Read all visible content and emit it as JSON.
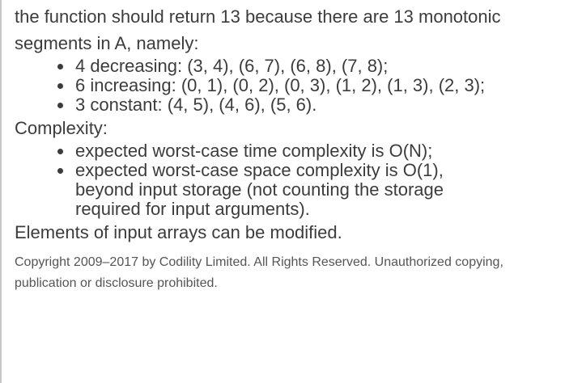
{
  "intro": "the function should return 13 because there are 13 monotonic segments in A, namely:",
  "segments": [
    "4 decreasing: (3, 4), (6, 7), (6, 8), (7, 8);",
    "6 increasing: (0, 1), (0, 2), (0, 3), (1, 2), (1, 3), (2, 3);",
    "3 constant: (4, 5), (4, 6), (5, 6)."
  ],
  "complexity_heading": "Complexity:",
  "complexity": [
    "expected worst-case time complexity is O(N);",
    "expected worst-case space complexity is O(1), beyond input storage (not counting the storage required for input arguments)."
  ],
  "elements_note": "Elements of input arrays can be modified.",
  "copyright": "Copyright 2009–2017 by Codility Limited. All Rights Reserved. Unauthorized copying, publication or disclosure prohibited."
}
